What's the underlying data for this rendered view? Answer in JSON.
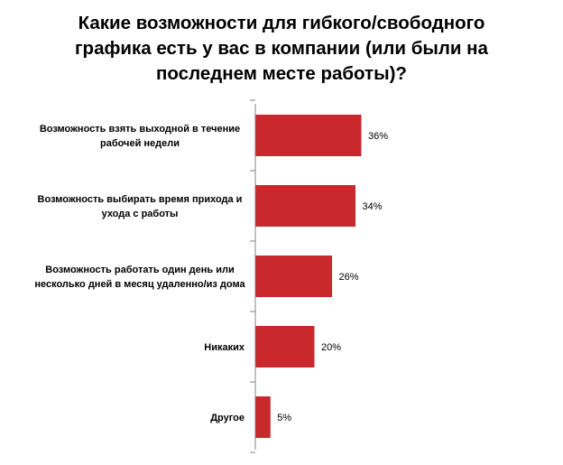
{
  "chart_data": {
    "type": "bar",
    "orientation": "horizontal",
    "title_lines": [
      "Какие возможности для гибкого/свободного",
      "графика есть у вас в компании (или были на",
      "последнем месте работы)?"
    ],
    "categories": [
      [
        "Возможность взять выходной в течение",
        "рабочей недели"
      ],
      [
        "Возможность выбирать время прихода и",
        "ухода с работы"
      ],
      [
        "Возможность работать один день или",
        "несколько дней в месяц удаленно/из дома"
      ],
      [
        "Никаких"
      ],
      [
        "Другое"
      ]
    ],
    "values": [
      36,
      34,
      26,
      20,
      5
    ],
    "value_labels": [
      "36%",
      "34%",
      "26%",
      "20%",
      "5%"
    ],
    "xlim": [
      0,
      100
    ],
    "grid": false,
    "legend": false,
    "bar_color": "#c9282d"
  }
}
